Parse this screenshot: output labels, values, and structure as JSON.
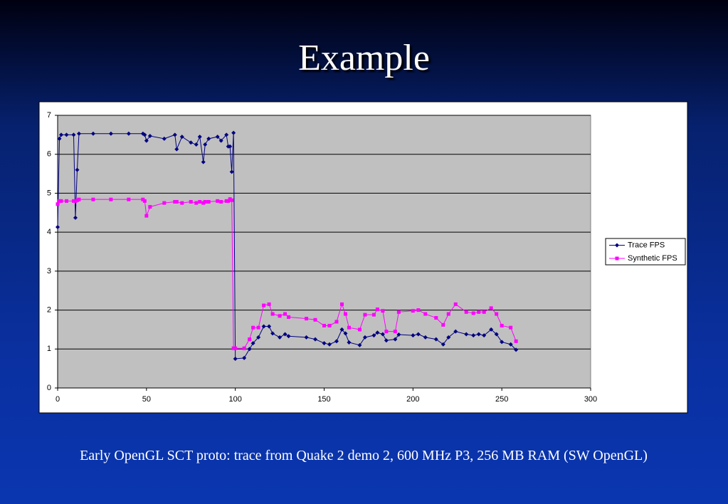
{
  "title": "Example",
  "caption": "Early OpenGL SCT proto: trace from Quake 2 demo 2, 600 MHz P3, 256 MB RAM (SW OpenGL)",
  "chart_data": {
    "type": "line",
    "x": [
      0,
      1,
      2,
      5,
      9,
      10,
      11,
      12,
      20,
      30,
      40,
      48,
      49,
      50,
      52,
      60,
      66,
      67,
      70,
      75,
      78,
      80,
      82,
      83,
      85,
      90,
      92,
      95,
      96,
      97,
      98,
      99,
      100,
      105,
      108,
      110,
      113,
      116,
      119,
      121,
      125,
      128,
      130,
      140,
      145,
      150,
      153,
      157,
      160,
      162,
      164,
      170,
      173,
      178,
      180,
      183,
      185,
      190,
      192,
      200,
      203,
      207,
      213,
      217,
      220,
      224,
      230,
      234,
      237,
      240,
      244,
      247,
      250,
      255,
      258
    ],
    "series": [
      {
        "name": "Trace FPS",
        "color": "#000080",
        "marker": "diamond",
        "values": [
          4.13,
          6.4,
          6.5,
          6.5,
          6.5,
          4.37,
          5.6,
          6.53,
          6.53,
          6.53,
          6.53,
          6.53,
          6.5,
          6.35,
          6.47,
          6.4,
          6.5,
          6.13,
          6.45,
          6.3,
          6.25,
          6.45,
          5.8,
          6.25,
          6.4,
          6.45,
          6.35,
          6.5,
          6.2,
          6.2,
          5.55,
          6.55,
          0.75,
          0.77,
          1.0,
          1.15,
          1.3,
          1.58,
          1.58,
          1.4,
          1.3,
          1.38,
          1.33,
          1.3,
          1.25,
          1.15,
          1.12,
          1.2,
          1.5,
          1.4,
          1.17,
          1.1,
          1.3,
          1.35,
          1.42,
          1.38,
          1.22,
          1.25,
          1.37,
          1.35,
          1.38,
          1.3,
          1.25,
          1.12,
          1.3,
          1.45,
          1.38,
          1.35,
          1.38,
          1.35,
          1.5,
          1.38,
          1.18,
          1.12,
          0.98
        ]
      },
      {
        "name": "Synthetic FPS",
        "color": "#ff00ff",
        "marker": "square",
        "values": [
          4.72,
          4.8,
          4.8,
          4.8,
          4.8,
          4.8,
          4.82,
          4.84,
          4.84,
          4.84,
          4.84,
          4.84,
          4.8,
          4.42,
          4.65,
          4.75,
          4.78,
          4.78,
          4.75,
          4.78,
          4.75,
          4.78,
          4.75,
          4.78,
          4.78,
          4.8,
          4.78,
          4.8,
          4.8,
          4.85,
          4.82,
          1.02,
          1.02,
          1.02,
          1.25,
          1.55,
          1.55,
          2.12,
          2.15,
          1.9,
          1.85,
          1.9,
          1.82,
          1.78,
          1.75,
          1.6,
          1.6,
          1.7,
          2.15,
          1.9,
          1.55,
          1.5,
          1.88,
          1.88,
          2.02,
          1.98,
          1.45,
          1.45,
          1.95,
          1.98,
          2.0,
          1.9,
          1.8,
          1.62,
          1.9,
          2.15,
          1.95,
          1.92,
          1.95,
          1.95,
          2.05,
          1.9,
          1.6,
          1.55,
          1.2
        ]
      }
    ],
    "xlim": [
      0,
      300
    ],
    "xticks": [
      0,
      50,
      100,
      150,
      200,
      250,
      300
    ],
    "ylim": [
      0,
      7
    ],
    "yticks": [
      0,
      1,
      2,
      3,
      4,
      5,
      6,
      7
    ],
    "grid": true,
    "plot_background": "#c0c0c0",
    "legend": "right"
  }
}
